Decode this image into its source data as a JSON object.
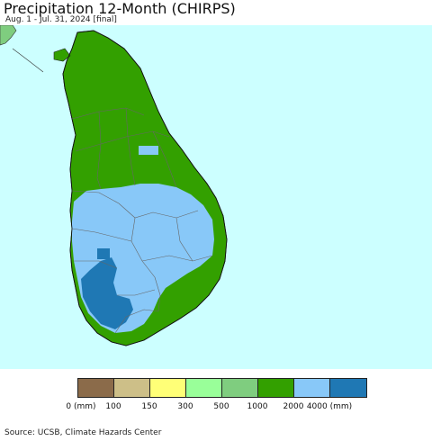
{
  "header": {
    "title": "Precipitation 12-Month (CHIRPS)",
    "subtitle": "Aug. 1 - Jul. 31, 2024 [final]"
  },
  "map": {
    "region": "Sri Lanka",
    "ocean_color": "#ccffff",
    "zones": [
      {
        "name": "north-and-east",
        "class": "1000-2000",
        "color": "#33a000"
      },
      {
        "name": "central-and-south-west",
        "class": "2000-4000",
        "color": "#88c8f8"
      },
      {
        "name": "south-west-coast",
        "class": "4000+",
        "color": "#1f78b4"
      },
      {
        "name": "india-tip",
        "class": "500-1000",
        "color": "#7fcd7f"
      }
    ]
  },
  "legend": {
    "colors": [
      "#8b6b4a",
      "#cdbf88",
      "#ffff77",
      "#99ff99",
      "#7fcd7f",
      "#33a000",
      "#88c8f8",
      "#1f78b4"
    ],
    "labels": [
      "0 (mm)",
      "100",
      "150",
      "300",
      "500",
      "1000",
      "2000",
      "4000 (mm)"
    ]
  },
  "footer": {
    "source": "Source: UCSB, Climate Hazards Center"
  }
}
